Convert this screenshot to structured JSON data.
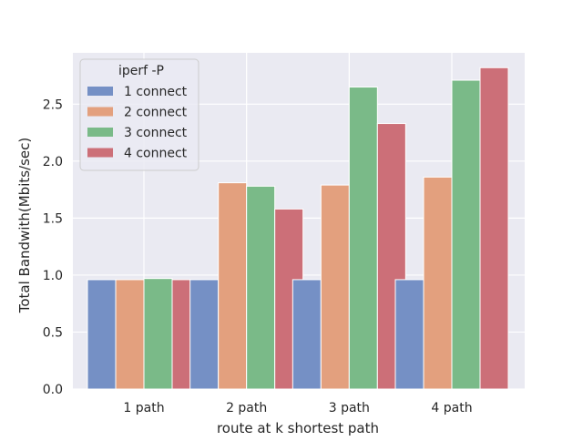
{
  "chart_data": {
    "type": "bar",
    "title": "",
    "xlabel": "route at k shortest path",
    "ylabel": "Total Bandwith(Mbits/sec)",
    "categories": [
      "1 path",
      "2 path",
      "3 path",
      "4 path"
    ],
    "ylim": [
      0,
      2.95
    ],
    "yticks": [
      0.0,
      0.5,
      1.0,
      1.5,
      2.0,
      2.5
    ],
    "ytick_labels": [
      "0.0",
      "0.5",
      "1.0",
      "1.5",
      "2.0",
      "2.5"
    ],
    "grid": true,
    "legend": {
      "title": "iperf -P",
      "placement": "top-left"
    },
    "series": [
      {
        "name": "1 connect",
        "color": "#7590c5",
        "values": [
          0.96,
          0.96,
          0.96,
          0.96
        ]
      },
      {
        "name": "2 connect",
        "color": "#e3a07e",
        "values": [
          0.96,
          1.81,
          1.79,
          1.86
        ]
      },
      {
        "name": "3 connect",
        "color": "#7aba88",
        "values": [
          0.97,
          1.78,
          2.65,
          2.71
        ]
      },
      {
        "name": "4 connect",
        "color": "#cc6f78",
        "values": [
          0.96,
          1.58,
          2.33,
          2.82
        ]
      }
    ]
  }
}
